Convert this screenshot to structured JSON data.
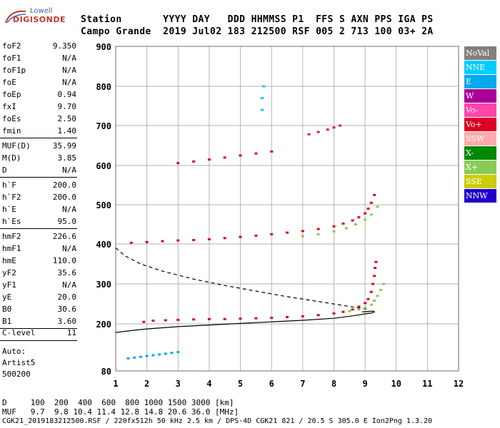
{
  "logo": {
    "line1": "Lowell",
    "line2": "DIGISONDE"
  },
  "header": {
    "row1": "Station       YYYY DAY   DDD HHMMSS P1  FFS S AXN PPS IGA PS",
    "row2": "Campo Grande  2019 Jul02 183 212500 RSF 005 2 713 100 03+ 2A"
  },
  "params": [
    {
      "key": "foF2",
      "value": "9.350"
    },
    {
      "key": "foF1",
      "value": "N/A"
    },
    {
      "key": "foF1p",
      "value": "N/A"
    },
    {
      "key": "foE",
      "value": "N/A"
    },
    {
      "key": "foEp",
      "value": "0.94"
    },
    {
      "key": "fxI",
      "value": "9.70"
    },
    {
      "key": "foEs",
      "value": "2.50"
    },
    {
      "key": "fmin",
      "value": "1.40"
    },
    {
      "key": "MUF(D)",
      "value": "35.99"
    },
    {
      "key": "M(D)",
      "value": "3.85"
    },
    {
      "key": "D",
      "value": "N/A"
    },
    {
      "key": "h`F",
      "value": "200.0"
    },
    {
      "key": "h`F2",
      "value": "200.0"
    },
    {
      "key": "h`E",
      "value": "N/A"
    },
    {
      "key": "h`Es",
      "value": "95.0"
    },
    {
      "key": "hmF2",
      "value": "226.6"
    },
    {
      "key": "hmF1",
      "value": "N/A"
    },
    {
      "key": "hmE",
      "value": "110.0"
    },
    {
      "key": "yF2",
      "value": "35.6"
    },
    {
      "key": "yF1",
      "value": "N/A"
    },
    {
      "key": "yE",
      "value": "20.0"
    },
    {
      "key": "B0",
      "value": "30.6"
    },
    {
      "key": "B1",
      "value": "3.60"
    },
    {
      "key": "C-level",
      "value": "11"
    }
  ],
  "autoscaling": {
    "line1": "Auto:",
    "line2": "Artist5",
    "line3": "500200"
  },
  "legend": [
    {
      "label": "NoVal",
      "color": "#808080"
    },
    {
      "label": "NNE",
      "color": "#00ccff"
    },
    {
      "label": "E",
      "color": "#00aaee"
    },
    {
      "label": "W",
      "color": "#aa0099"
    },
    {
      "label": "Vo-",
      "color": "#ff44aa"
    },
    {
      "label": "Vo+",
      "color": "#dd0022"
    },
    {
      "label": "SSW",
      "color": "#ffaaaa"
    },
    {
      "label": "X-",
      "color": "#008800"
    },
    {
      "label": "X+",
      "color": "#88cc55"
    },
    {
      "label": "SSE",
      "color": "#cccc00"
    },
    {
      "label": "NNW",
      "color": "#2200cc"
    }
  ],
  "footer": {
    "row_d": "D     100  200  400  600  800 1000 1500 3000 [km]",
    "row_muf": "MUF   9.7  9.8 10.4 11.4 12.8 14.8 20.6 36.0 [MHz]",
    "status": "CGK21_2019183212500.RSF / 220fx512h 50 kHz 2.5 km / DPS-4D CGK21 821 / 20.5 S 305.0 E Ion2Png 1.3.20"
  },
  "chart_data": {
    "type": "scatter",
    "x_ticks": [
      "1",
      "2",
      "3",
      "4",
      "5",
      "6",
      "7",
      "8",
      "9",
      "10",
      "11",
      "12"
    ],
    "y_ticks": [
      "80",
      "200",
      "300",
      "400",
      "500",
      "600",
      "700",
      "800",
      "900"
    ],
    "xlim": [
      1,
      12
    ],
    "y_tick_values": [
      80,
      200,
      300,
      400,
      500,
      600,
      700,
      800,
      900
    ],
    "grid": true,
    "series": [
      {
        "color": "#dd0022",
        "x": [
          1.9,
          2.2,
          2.6,
          3.0,
          3.5,
          4.0,
          4.5,
          5.0,
          5.5,
          6.0,
          6.5,
          7.0,
          7.5,
          8.0,
          8.3,
          8.6,
          8.8,
          9.0,
          9.1,
          9.2,
          9.25,
          9.3,
          9.32,
          9.35
        ],
        "y": [
          205,
          208,
          209,
          210,
          211,
          212,
          212,
          213,
          214,
          215,
          217,
          219,
          222,
          226,
          230,
          236,
          243,
          252,
          262,
          280,
          300,
          320,
          340,
          355
        ]
      },
      {
        "color": "#88cc55",
        "x": [
          8.5,
          8.8,
          9.0,
          9.2,
          9.3,
          9.4,
          9.5,
          9.6
        ],
        "y": [
          232,
          236,
          240,
          248,
          258,
          270,
          285,
          300
        ]
      },
      {
        "color": "#dd0022",
        "x": [
          1.5,
          2.0,
          2.5,
          3.0,
          3.5,
          4.0,
          4.5,
          5.0,
          5.5,
          6.0,
          6.5,
          7.0,
          7.5,
          8.0,
          8.3,
          8.6,
          8.8,
          9.0,
          9.1,
          9.2,
          9.3
        ],
        "y": [
          403,
          405,
          407,
          409,
          410,
          412,
          415,
          418,
          421,
          425,
          429,
          433,
          438,
          445,
          452,
          460,
          468,
          478,
          490,
          505,
          525
        ]
      },
      {
        "color": "#88cc55",
        "x": [
          7.0,
          7.5,
          8.0,
          8.4,
          8.7,
          9.0,
          9.2,
          9.4
        ],
        "y": [
          420,
          425,
          432,
          440,
          450,
          462,
          475,
          495
        ]
      },
      {
        "color": "#dd0022",
        "x": [
          3.0,
          3.5,
          4.0,
          4.5,
          5.0,
          5.5,
          6.0
        ],
        "y": [
          606,
          610,
          615,
          620,
          625,
          630,
          635
        ]
      },
      {
        "color": "#cc2266",
        "x": [
          7.2,
          7.5,
          7.8,
          8.0,
          8.2
        ],
        "y": [
          678,
          684,
          690,
          695,
          700
        ]
      },
      {
        "color": "#00aaee",
        "x": [
          1.4,
          1.6,
          1.8,
          2.0,
          2.2,
          2.4,
          2.6,
          2.8,
          3.0
        ],
        "y": [
          112,
          114,
          116,
          118,
          120,
          122,
          124,
          126,
          128
        ]
      },
      {
        "color": "#00ccff",
        "x": [
          5.7,
          5.7,
          5.75
        ],
        "y": [
          740,
          770,
          800
        ]
      }
    ],
    "lines": [
      {
        "name": "profile",
        "x": [
          1.0,
          1.5,
          2.0,
          3.0,
          4.0,
          5.0,
          6.0,
          7.0,
          8.0,
          8.6,
          9.0,
          9.2,
          9.3,
          9.25,
          9.1,
          8.9
        ],
        "y": [
          178,
          183,
          187,
          193,
          197,
          201,
          205,
          209,
          214,
          220,
          225,
          227,
          230,
          232,
          231,
          230
        ]
      },
      {
        "name": "model",
        "x": [
          1.0,
          1.3,
          1.8,
          2.5,
          3.5,
          4.5,
          5.5,
          6.5,
          7.5,
          8.3,
          8.8,
          9.1
        ],
        "y": [
          390,
          370,
          350,
          332,
          312,
          296,
          282,
          268,
          256,
          246,
          240,
          236
        ]
      }
    ]
  }
}
